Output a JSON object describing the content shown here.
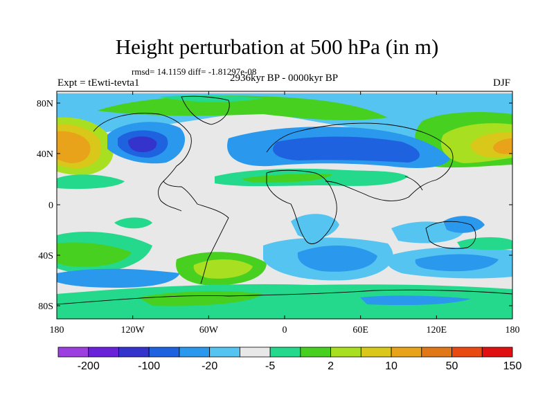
{
  "title": "Height perturbation at 500 hPa (in m)",
  "stats": "rmsd= 14.1159 diff= -1.81297e-08",
  "period": "2936kyr BP - 0000kyr BP",
  "experiment": "Expt = tEwti-tevta1",
  "season": "DJF",
  "lat_ticks": [
    "80N",
    "40N",
    "0",
    "40S",
    "80S"
  ],
  "lon_ticks": [
    "180",
    "120W",
    "60W",
    "0",
    "60E",
    "120E",
    "180"
  ],
  "colorbar": {
    "colors": [
      "#9b3fe0",
      "#6a22d8",
      "#3433cc",
      "#1f62e0",
      "#2a98ec",
      "#55c4f0",
      "#e8e8e8",
      "#24d98c",
      "#48d020",
      "#a8df20",
      "#d9c71a",
      "#e8a31a",
      "#e07818",
      "#e84a12",
      "#e01010"
    ],
    "labels": [
      "-200",
      "-100",
      "-20",
      "-5",
      "2",
      "10",
      "50",
      "150"
    ]
  }
}
